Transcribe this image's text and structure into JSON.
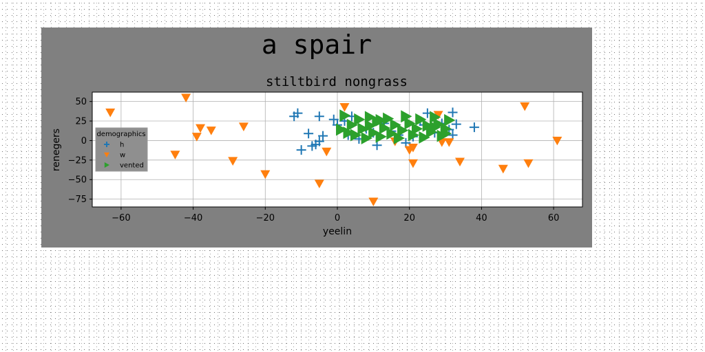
{
  "chart_data": {
    "type": "scatter",
    "suptitle": "a spair",
    "title": "stiltbird nongrass",
    "xlabel": "yeelin",
    "ylabel": "renegers",
    "xlim": [
      -68,
      68
    ],
    "ylim": [
      -85,
      62
    ],
    "xticks": [
      -60,
      -40,
      -20,
      0,
      20,
      40,
      60
    ],
    "yticks": [
      50,
      25,
      0,
      -25,
      -50,
      -75
    ],
    "grid": true,
    "legend": {
      "title": "demographics",
      "placement": "center-left"
    },
    "colors": {
      "figure_bg": "#808080",
      "axes_bg": "#ffffff",
      "grid": "#b0b0b0"
    },
    "series": [
      {
        "name": "h",
        "marker": "plus",
        "color": "#1f77b4",
        "points": [
          [
            -12,
            31
          ],
          [
            -11,
            35
          ],
          [
            -8,
            9
          ],
          [
            -10,
            -12
          ],
          [
            -7,
            -7
          ],
          [
            -6,
            -5
          ],
          [
            -5,
            31
          ],
          [
            -4,
            6
          ],
          [
            -5,
            -1
          ],
          [
            -1,
            27
          ],
          [
            0,
            20
          ],
          [
            2,
            25
          ],
          [
            4,
            31
          ],
          [
            3,
            7
          ],
          [
            6,
            2
          ],
          [
            8,
            15
          ],
          [
            10,
            10
          ],
          [
            11,
            -6
          ],
          [
            13,
            22
          ],
          [
            15,
            12
          ],
          [
            17,
            7
          ],
          [
            19,
            -3
          ],
          [
            21,
            5
          ],
          [
            23,
            25
          ],
          [
            25,
            35
          ],
          [
            24,
            20
          ],
          [
            27,
            10
          ],
          [
            29,
            22
          ],
          [
            31,
            14
          ],
          [
            32,
            36
          ],
          [
            33,
            21
          ],
          [
            32,
            7
          ],
          [
            38,
            17
          ]
        ]
      },
      {
        "name": "w",
        "marker": "triangle-down",
        "color": "#ff7f0e",
        "points": [
          [
            -63,
            36
          ],
          [
            -42,
            55
          ],
          [
            -45,
            -18
          ],
          [
            -39,
            5
          ],
          [
            -38,
            16
          ],
          [
            -35,
            13
          ],
          [
            -29,
            -26
          ],
          [
            -26,
            18
          ],
          [
            -20,
            -43
          ],
          [
            -5,
            -55
          ],
          [
            -3,
            -14
          ],
          [
            2,
            43
          ],
          [
            10,
            -78
          ],
          [
            16,
            -1
          ],
          [
            20,
            -12
          ],
          [
            21,
            -29
          ],
          [
            21,
            -9
          ],
          [
            29,
            -2
          ],
          [
            28,
            33
          ],
          [
            31,
            -2
          ],
          [
            34,
            -27
          ],
          [
            46,
            -36
          ],
          [
            52,
            44
          ],
          [
            53,
            -29
          ],
          [
            61,
            0
          ]
        ]
      },
      {
        "name": "vented",
        "marker": "triangle-right",
        "color": "#2ca02c",
        "points": [
          [
            1,
            14
          ],
          [
            2,
            32
          ],
          [
            3,
            10
          ],
          [
            4,
            20
          ],
          [
            5,
            7
          ],
          [
            6,
            27
          ],
          [
            7,
            15
          ],
          [
            8,
            3
          ],
          [
            9,
            30
          ],
          [
            9,
            19
          ],
          [
            10,
            10
          ],
          [
            11,
            24
          ],
          [
            12,
            5
          ],
          [
            13,
            16
          ],
          [
            14,
            28
          ],
          [
            15,
            9
          ],
          [
            16,
            20
          ],
          [
            17,
            3
          ],
          [
            18,
            13
          ],
          [
            19,
            31
          ],
          [
            20,
            22
          ],
          [
            21,
            7
          ],
          [
            22,
            15
          ],
          [
            23,
            27
          ],
          [
            24,
            4
          ],
          [
            25,
            19
          ],
          [
            26,
            11
          ],
          [
            27,
            30
          ],
          [
            28,
            21
          ],
          [
            29,
            6
          ],
          [
            30,
            15
          ],
          [
            31,
            26
          ],
          [
            30,
            9
          ],
          [
            27,
            17
          ],
          [
            12,
            26
          ]
        ]
      }
    ]
  }
}
